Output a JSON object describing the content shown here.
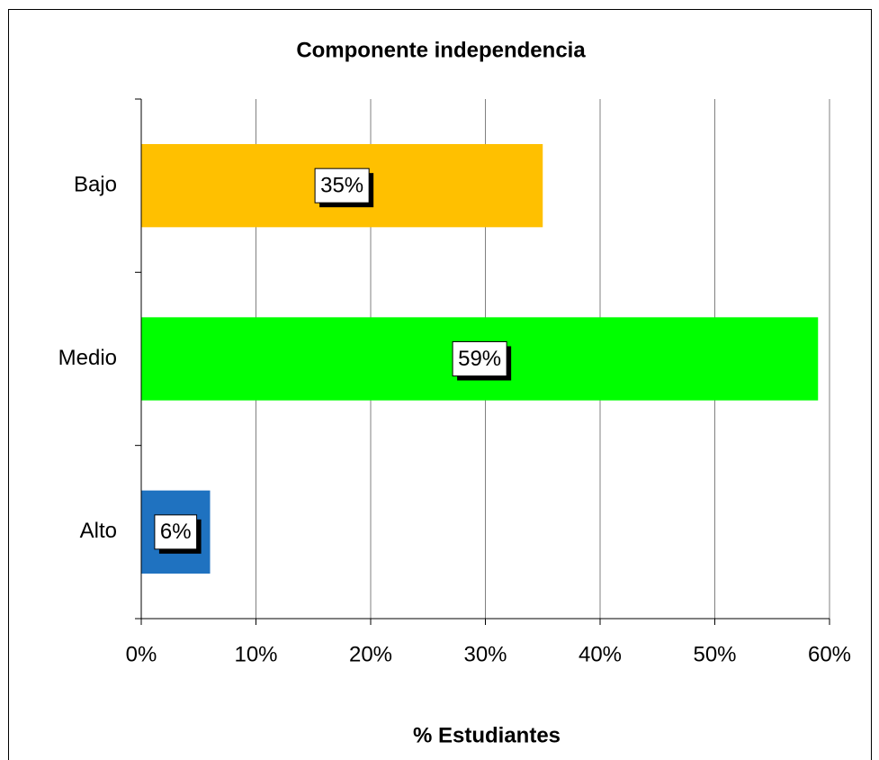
{
  "chart_data": {
    "type": "bar",
    "orientation": "horizontal",
    "title": "Componente independencia",
    "x_label": "% Estudiantes",
    "categories": [
      "Bajo",
      "Medio",
      "Alto"
    ],
    "values": [
      35,
      59,
      6
    ],
    "value_labels": [
      "35%",
      "59%",
      "6%"
    ],
    "colors": [
      "#ffc000",
      "#00ff00",
      "#1f72c0"
    ],
    "xlim": [
      0,
      60
    ],
    "xticks": [
      {
        "value": 0,
        "label": "0%"
      },
      {
        "value": 10,
        "label": "10%"
      },
      {
        "value": 20,
        "label": "20%"
      },
      {
        "value": 30,
        "label": "30%"
      },
      {
        "value": 40,
        "label": "40%"
      },
      {
        "value": 50,
        "label": "50%"
      },
      {
        "value": 60,
        "label": "60%"
      }
    ],
    "grid": true
  }
}
